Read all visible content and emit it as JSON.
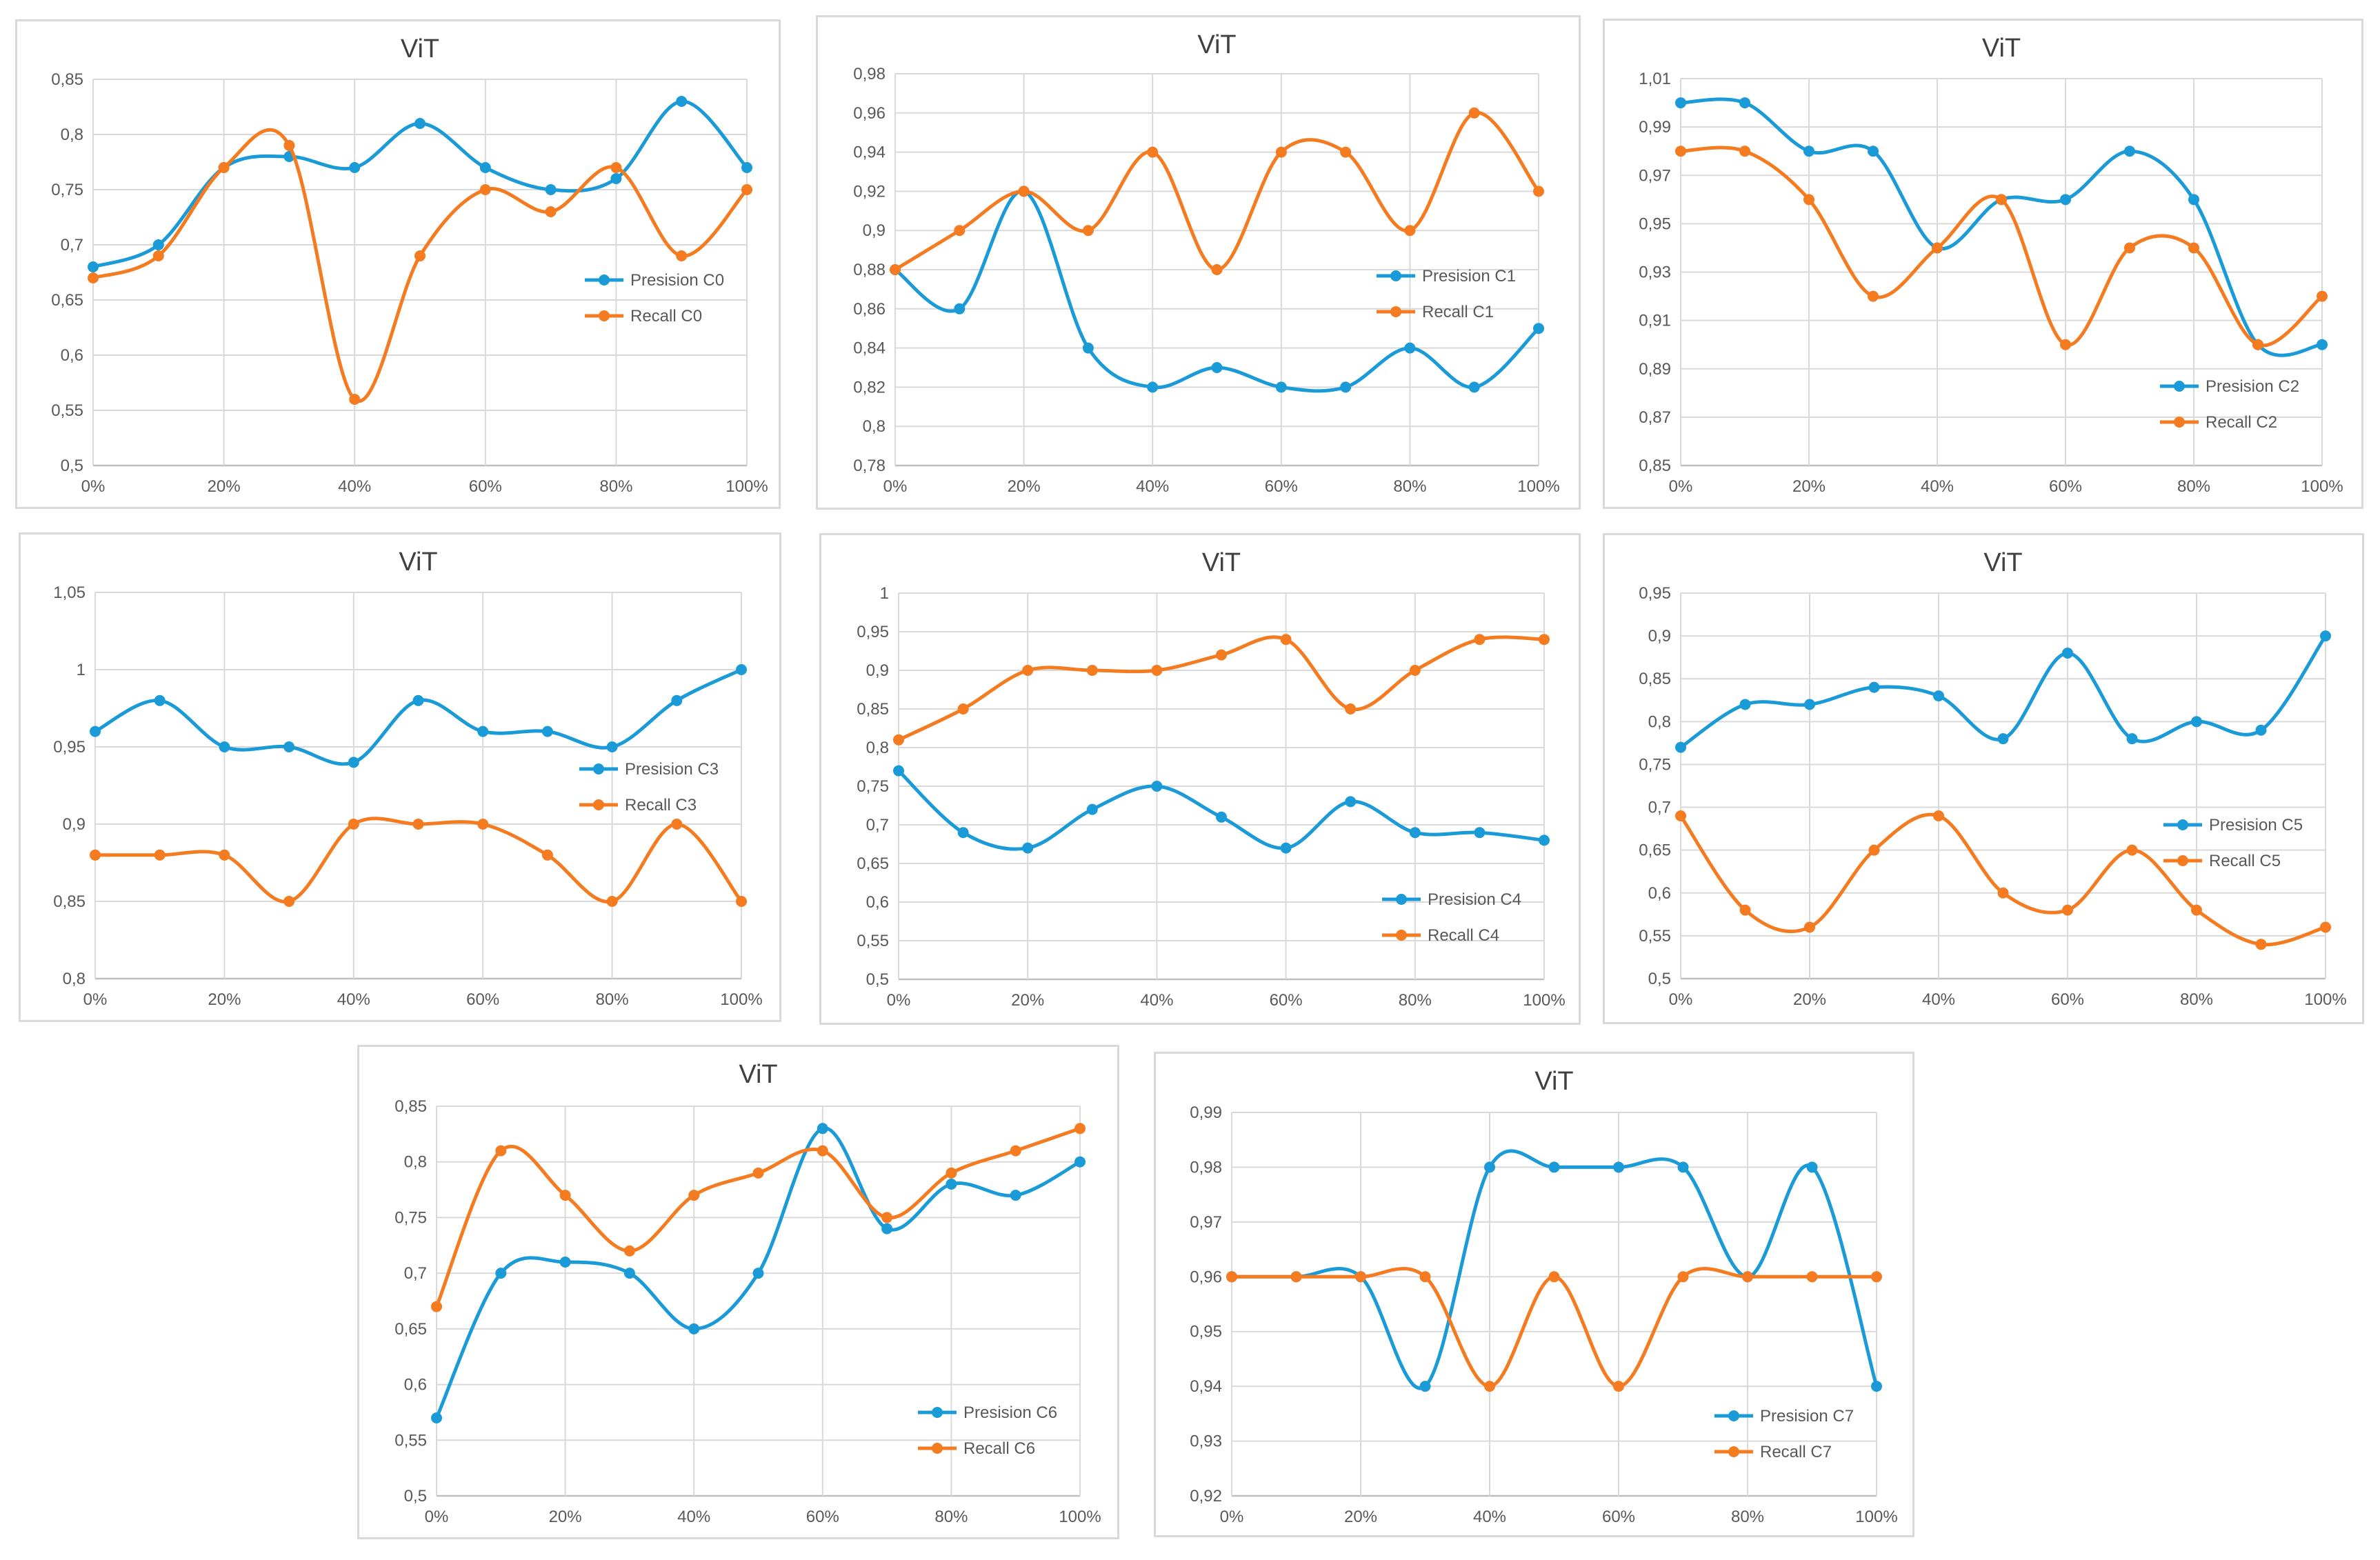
{
  "colors": {
    "precision": "#1a9bd7",
    "recall": "#f47b20"
  },
  "chart_data": [
    {
      "type": "line",
      "title": "ViT",
      "x": [
        "0%",
        "10%",
        "20%",
        "30%",
        "40%",
        "50%",
        "60%",
        "70%",
        "80%",
        "90%",
        "100%"
      ],
      "xticks": [
        "0%",
        "20%",
        "40%",
        "60%",
        "80%",
        "100%"
      ],
      "ylim": [
        0.5,
        0.85
      ],
      "yticks": [
        "0,5",
        "0,55",
        "0,6",
        "0,65",
        "0,7",
        "0,75",
        "0,8",
        "0,85"
      ],
      "legend_position": "middle-right",
      "series": [
        {
          "name": "Presision C0",
          "values": [
            0.68,
            0.7,
            0.77,
            0.78,
            0.77,
            0.81,
            0.77,
            0.75,
            0.76,
            0.83,
            0.77
          ]
        },
        {
          "name": "Recall C0",
          "values": [
            0.67,
            0.69,
            0.77,
            0.79,
            0.56,
            0.69,
            0.75,
            0.73,
            0.77,
            0.69,
            0.75
          ]
        }
      ]
    },
    {
      "type": "line",
      "title": "ViT",
      "x": [
        "0%",
        "10%",
        "20%",
        "30%",
        "40%",
        "50%",
        "60%",
        "70%",
        "80%",
        "90%",
        "100%"
      ],
      "xticks": [
        "0%",
        "20%",
        "40%",
        "60%",
        "80%",
        "100%"
      ],
      "ylim": [
        0.78,
        0.98
      ],
      "yticks": [
        "0,78",
        "0,8",
        "0,82",
        "0,84",
        "0,86",
        "0,88",
        "0,9",
        "0,92",
        "0,94",
        "0,96",
        "0,98"
      ],
      "legend_position": "middle-right",
      "series": [
        {
          "name": "Presision C1",
          "values": [
            0.88,
            0.86,
            0.92,
            0.84,
            0.82,
            0.83,
            0.82,
            0.82,
            0.84,
            0.82,
            0.85
          ]
        },
        {
          "name": "Recall C1",
          "values": [
            0.88,
            0.9,
            0.92,
            0.9,
            0.94,
            0.88,
            0.94,
            0.94,
            0.9,
            0.96,
            0.92
          ]
        }
      ]
    },
    {
      "type": "line",
      "title": "ViT",
      "x": [
        "0%",
        "10%",
        "20%",
        "30%",
        "40%",
        "50%",
        "60%",
        "70%",
        "80%",
        "90%",
        "100%"
      ],
      "xticks": [
        "0%",
        "20%",
        "40%",
        "60%",
        "80%",
        "100%"
      ],
      "ylim": [
        0.85,
        1.01
      ],
      "yticks": [
        "0,85",
        "0,87",
        "0,89",
        "0,91",
        "0,93",
        "0,95",
        "0,97",
        "0,99",
        "1,01"
      ],
      "legend_position": "bottom-right",
      "series": [
        {
          "name": "Presision C2",
          "values": [
            1.0,
            1.0,
            0.98,
            0.98,
            0.94,
            0.96,
            0.96,
            0.98,
            0.96,
            0.9,
            0.9
          ]
        },
        {
          "name": "Recall C2",
          "values": [
            0.98,
            0.98,
            0.96,
            0.92,
            0.94,
            0.96,
            0.9,
            0.94,
            0.94,
            0.9,
            0.92
          ]
        }
      ]
    },
    {
      "type": "line",
      "title": "ViT",
      "x": [
        "0%",
        "10%",
        "20%",
        "30%",
        "40%",
        "50%",
        "60%",
        "70%",
        "80%",
        "90%",
        "100%"
      ],
      "xticks": [
        "0%",
        "20%",
        "40%",
        "60%",
        "80%",
        "100%"
      ],
      "ylim": [
        0.8,
        1.05
      ],
      "yticks": [
        "0,8",
        "0,85",
        "0,9",
        "0,95",
        "1",
        "1,05"
      ],
      "legend_position": "middle-right",
      "series": [
        {
          "name": "Presision C3",
          "values": [
            0.96,
            0.98,
            0.95,
            0.95,
            0.94,
            0.98,
            0.96,
            0.96,
            0.95,
            0.98,
            1.0
          ]
        },
        {
          "name": "Recall C3",
          "values": [
            0.88,
            0.88,
            0.88,
            0.85,
            0.9,
            0.9,
            0.9,
            0.88,
            0.85,
            0.9,
            0.85
          ]
        }
      ]
    },
    {
      "type": "line",
      "title": "ViT",
      "x": [
        "0%",
        "10%",
        "20%",
        "30%",
        "40%",
        "50%",
        "60%",
        "70%",
        "80%",
        "90%",
        "100%"
      ],
      "xticks": [
        "0%",
        "20%",
        "40%",
        "60%",
        "80%",
        "100%"
      ],
      "ylim": [
        0.5,
        1.0
      ],
      "yticks": [
        "0,5",
        "0,55",
        "0,6",
        "0,65",
        "0,7",
        "0,75",
        "0,8",
        "0,85",
        "0,9",
        "0,95",
        "1"
      ],
      "legend_position": "bottom-right",
      "series": [
        {
          "name": "Presision C4",
          "values": [
            0.77,
            0.69,
            0.67,
            0.72,
            0.75,
            0.71,
            0.67,
            0.73,
            0.69,
            0.69,
            0.68
          ]
        },
        {
          "name": "Recall C4",
          "values": [
            0.81,
            0.85,
            0.9,
            0.9,
            0.9,
            0.92,
            0.94,
            0.85,
            0.9,
            0.94,
            0.94
          ]
        }
      ]
    },
    {
      "type": "line",
      "title": "ViT",
      "x": [
        "0%",
        "10%",
        "20%",
        "30%",
        "40%",
        "50%",
        "60%",
        "70%",
        "80%",
        "90%",
        "100%"
      ],
      "xticks": [
        "0%",
        "20%",
        "40%",
        "60%",
        "80%",
        "100%"
      ],
      "ylim": [
        0.5,
        0.95
      ],
      "yticks": [
        "0,5",
        "0,55",
        "0,6",
        "0,65",
        "0,7",
        "0,75",
        "0,8",
        "0,85",
        "0,9",
        "0,95"
      ],
      "legend_position": "middle-right",
      "series": [
        {
          "name": "Presision C5",
          "values": [
            0.77,
            0.82,
            0.82,
            0.84,
            0.83,
            0.78,
            0.88,
            0.78,
            0.8,
            0.79,
            0.9
          ]
        },
        {
          "name": "Recall C5",
          "values": [
            0.69,
            0.58,
            0.56,
            0.65,
            0.69,
            0.6,
            0.58,
            0.65,
            0.58,
            0.54,
            0.56
          ]
        }
      ]
    },
    {
      "type": "line",
      "title": "ViT",
      "x": [
        "0%",
        "10%",
        "20%",
        "30%",
        "40%",
        "50%",
        "60%",
        "70%",
        "80%",
        "90%",
        "100%"
      ],
      "xticks": [
        "0%",
        "20%",
        "40%",
        "60%",
        "80%",
        "100%"
      ],
      "ylim": [
        0.5,
        0.85
      ],
      "yticks": [
        "0,5",
        "0,55",
        "0,6",
        "0,65",
        "0,7",
        "0,75",
        "0,8",
        "0,85"
      ],
      "legend_position": "bottom-right",
      "series": [
        {
          "name": "Presision C6",
          "values": [
            0.57,
            0.7,
            0.71,
            0.7,
            0.65,
            0.7,
            0.83,
            0.74,
            0.78,
            0.77,
            0.8
          ]
        },
        {
          "name": "Recall C6",
          "values": [
            0.67,
            0.81,
            0.77,
            0.72,
            0.77,
            0.79,
            0.81,
            0.75,
            0.79,
            0.81,
            0.83
          ]
        }
      ]
    },
    {
      "type": "line",
      "title": "ViT",
      "x": [
        "0%",
        "10%",
        "20%",
        "30%",
        "40%",
        "50%",
        "60%",
        "70%",
        "80%",
        "90%",
        "100%"
      ],
      "xticks": [
        "0%",
        "20%",
        "40%",
        "60%",
        "80%",
        "100%"
      ],
      "ylim": [
        0.92,
        0.99
      ],
      "yticks": [
        "0,92",
        "0,93",
        "0,94",
        "0,95",
        "0,96",
        "0,97",
        "0,98",
        "0,99"
      ],
      "legend_position": "bottom-right",
      "series": [
        {
          "name": "Presision C7",
          "values": [
            0.96,
            0.96,
            0.96,
            0.94,
            0.98,
            0.98,
            0.98,
            0.98,
            0.96,
            0.98,
            0.94
          ]
        },
        {
          "name": "Recall C7",
          "values": [
            0.96,
            0.96,
            0.96,
            0.96,
            0.94,
            0.96,
            0.94,
            0.96,
            0.96,
            0.96,
            0.96
          ]
        }
      ]
    }
  ]
}
